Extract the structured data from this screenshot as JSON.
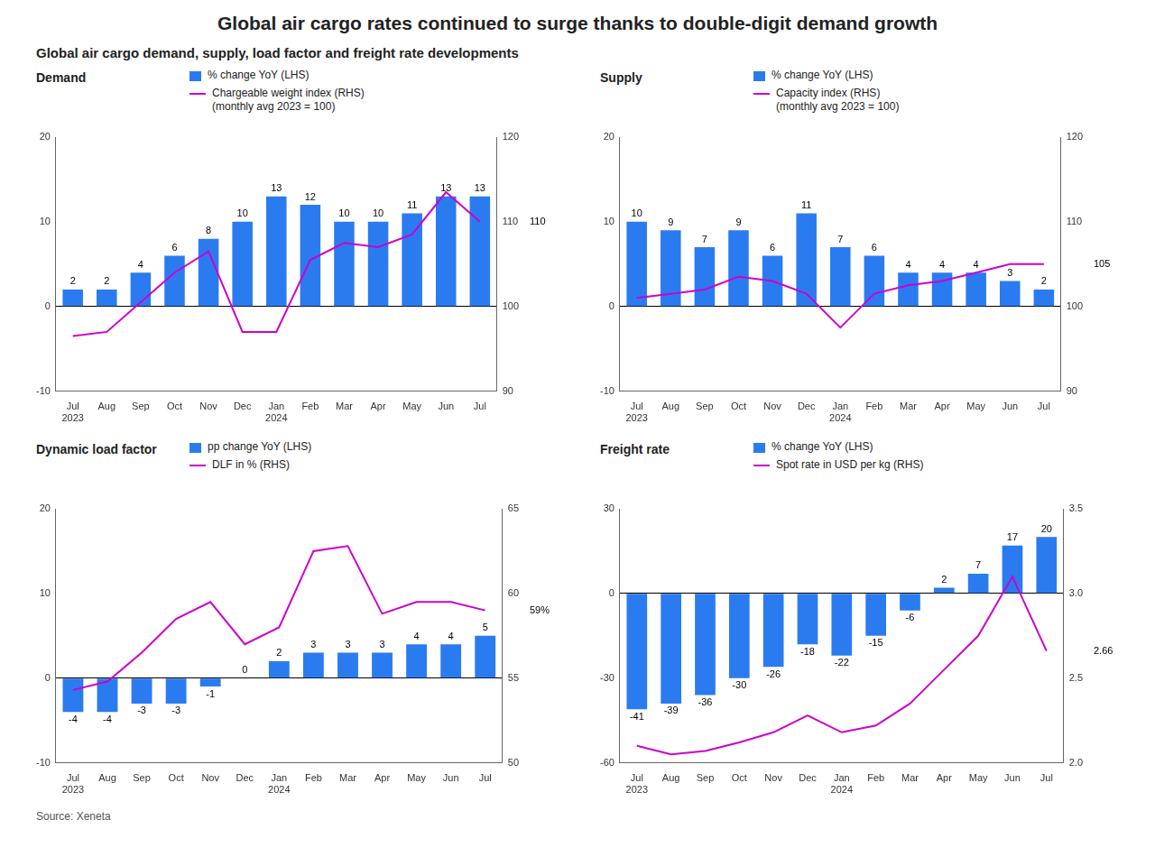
{
  "title": "Global air cargo rates continued to surge thanks to double-digit demand growth",
  "subtitle": "Global air cargo demand, supply, load factor and freight rate developments",
  "annotations": [
    {
      "text": "Source: Xeneta"
    }
  ],
  "chart_data": [
    {
      "type": "bar",
      "title": "Demand",
      "categories": [
        "Jul\n2023",
        "Aug",
        "Sep",
        "Oct",
        "Nov",
        "Dec",
        "Jan\n2024",
        "Feb",
        "Mar",
        "Apr",
        "May",
        "Jun",
        "Jul"
      ],
      "series": [
        {
          "name": "% change YoY (LHS)",
          "type": "bar",
          "color": "#2B7BF0",
          "data_labels": true,
          "values": [
            2,
            2,
            4,
            6,
            8,
            10,
            13,
            12,
            10,
            10,
            11,
            13,
            13
          ]
        },
        {
          "name": "Chargeable weight index (RHS)\n(monthly avg 2023 = 100)",
          "type": "line",
          "color": "#CC00CC",
          "axis": "y2",
          "values": [
            96.5,
            97.0,
            100.5,
            104.0,
            106.5,
            97.0,
            97.0,
            105.5,
            107.5,
            107.0,
            108.5,
            113.5,
            110.0
          ]
        }
      ],
      "ylim": [
        -10,
        20
      ],
      "yticks": [
        -10,
        0,
        10,
        20
      ],
      "y2lim": [
        90,
        120
      ],
      "y2ticks": [
        90,
        100,
        110,
        120
      ],
      "annotations": [
        {
          "text": "110",
          "y": 110.0,
          "axis": "y2"
        }
      ],
      "grid": false,
      "legend": "top"
    },
    {
      "type": "bar",
      "title": "Supply",
      "categories": [
        "Jul\n2023",
        "Aug",
        "Sep",
        "Oct",
        "Nov",
        "Dec",
        "Jan\n2024",
        "Feb",
        "Mar",
        "Apr",
        "May",
        "Jun",
        "Jul"
      ],
      "series": [
        {
          "name": "% change YoY (LHS)",
          "type": "bar",
          "color": "#2B7BF0",
          "data_labels": true,
          "values": [
            10,
            9,
            7,
            9,
            6,
            11,
            7,
            6,
            4,
            4,
            4,
            3,
            2
          ]
        },
        {
          "name": "Capacity index (RHS)\n(monthly avg 2023 = 100)",
          "type": "line",
          "color": "#CC00CC",
          "axis": "y2",
          "values": [
            101.0,
            101.5,
            102.0,
            103.5,
            103.0,
            101.5,
            97.5,
            101.5,
            102.5,
            103.0,
            104.0,
            105.0,
            105.0
          ]
        }
      ],
      "ylim": [
        -10,
        20
      ],
      "yticks": [
        -10,
        0,
        10,
        20
      ],
      "y2lim": [
        90,
        120
      ],
      "y2ticks": [
        90,
        100,
        110,
        120
      ],
      "annotations": [
        {
          "text": "105",
          "y": 105.0,
          "axis": "y2"
        }
      ],
      "grid": false,
      "legend": "top"
    },
    {
      "type": "bar",
      "title": "Dynamic load factor",
      "categories": [
        "Jul\n2023",
        "Aug",
        "Sep",
        "Oct",
        "Nov",
        "Dec",
        "Jan\n2024",
        "Feb",
        "Mar",
        "Apr",
        "May",
        "Jun",
        "Jul"
      ],
      "series": [
        {
          "name": "pp change YoY (LHS)",
          "type": "bar",
          "color": "#2B7BF0",
          "data_labels": true,
          "values": [
            -4,
            -4,
            -3,
            -3,
            -1,
            0,
            2,
            3,
            3,
            3,
            4,
            4,
            5
          ]
        },
        {
          "name": "DLF in % (RHS)",
          "type": "line",
          "color": "#CC00CC",
          "axis": "y2",
          "values": [
            54.3,
            54.8,
            56.5,
            58.5,
            59.5,
            57.0,
            58.0,
            62.5,
            62.8,
            58.8,
            59.5,
            59.5,
            59.0
          ]
        }
      ],
      "ylim": [
        -10,
        20
      ],
      "yticks": [
        -10,
        0,
        10,
        20
      ],
      "y2lim": [
        50,
        65
      ],
      "y2ticks": [
        50,
        55,
        60,
        65
      ],
      "annotations": [
        {
          "text": "59%",
          "y": 59.0,
          "axis": "y2"
        }
      ],
      "grid": false,
      "legend": "top"
    },
    {
      "type": "bar",
      "title": "Freight rate",
      "categories": [
        "Jul\n2023",
        "Aug",
        "Sep",
        "Oct",
        "Nov",
        "Dec",
        "Jan\n2024",
        "Feb",
        "Mar",
        "Apr",
        "May",
        "Jun",
        "Jul"
      ],
      "series": [
        {
          "name": "% change YoY (LHS)",
          "type": "bar",
          "color": "#2B7BF0",
          "data_labels": true,
          "values": [
            -41,
            -39,
            -36,
            -30,
            -26,
            -18,
            -22,
            -15,
            -6,
            2,
            7,
            17,
            20
          ]
        },
        {
          "name": "Spot rate in USD per kg (RHS)",
          "type": "line",
          "color": "#CC00CC",
          "axis": "y2",
          "values": [
            2.1,
            2.05,
            2.07,
            2.12,
            2.18,
            2.28,
            2.18,
            2.22,
            2.35,
            2.55,
            2.75,
            3.1,
            2.66
          ]
        }
      ],
      "ylim": [
        -60,
        30
      ],
      "yticks": [
        -60,
        -30,
        0,
        30
      ],
      "y2lim": [
        2.0,
        3.5
      ],
      "y2ticks": [
        {
          "value": 2.0,
          "label": "2.0"
        },
        {
          "value": 2.5,
          "label": "2.5"
        },
        {
          "value": 3.0,
          "label": "3.0"
        },
        {
          "value": 3.5,
          "label": "3.5"
        }
      ],
      "annotations": [
        {
          "text": "2.66",
          "y": 2.66,
          "axis": "y2"
        }
      ],
      "grid": false,
      "legend": "top"
    }
  ]
}
